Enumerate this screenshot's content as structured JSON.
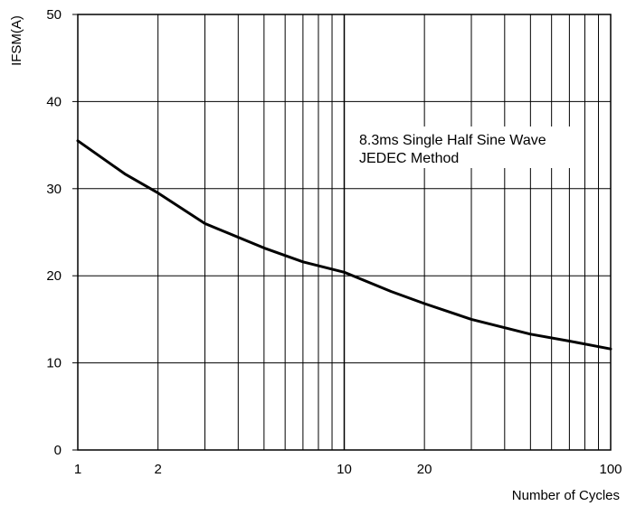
{
  "chart_data": {
    "type": "line",
    "title": "",
    "xlabel": "Number of Cycles",
    "ylabel": "IFSM(A)",
    "x_scale": "log",
    "xlim": [
      1,
      100
    ],
    "ylim": [
      0,
      50
    ],
    "grid": true,
    "x_ticks": [
      1,
      2,
      10,
      20,
      100
    ],
    "x_tick_labels": [
      "1",
      "2",
      "10",
      "20",
      "100"
    ],
    "y_ticks": [
      0,
      10,
      20,
      30,
      40,
      50
    ],
    "y_tick_labels": [
      "0",
      "10",
      "20",
      "30",
      "40",
      "50"
    ],
    "annotations": [
      "8.3ms Single Half Sine Wave",
      "JEDEC Method"
    ],
    "line_color": "#000000",
    "series": [
      {
        "name": "",
        "x": [
          1,
          1.5,
          2,
          3,
          5,
          7,
          10,
          15,
          20,
          30,
          50,
          70,
          100
        ],
        "y": [
          35.5,
          31.7,
          29.5,
          26.0,
          23.2,
          21.6,
          20.4,
          18.2,
          16.8,
          15.0,
          13.3,
          12.5,
          11.6
        ]
      }
    ]
  }
}
